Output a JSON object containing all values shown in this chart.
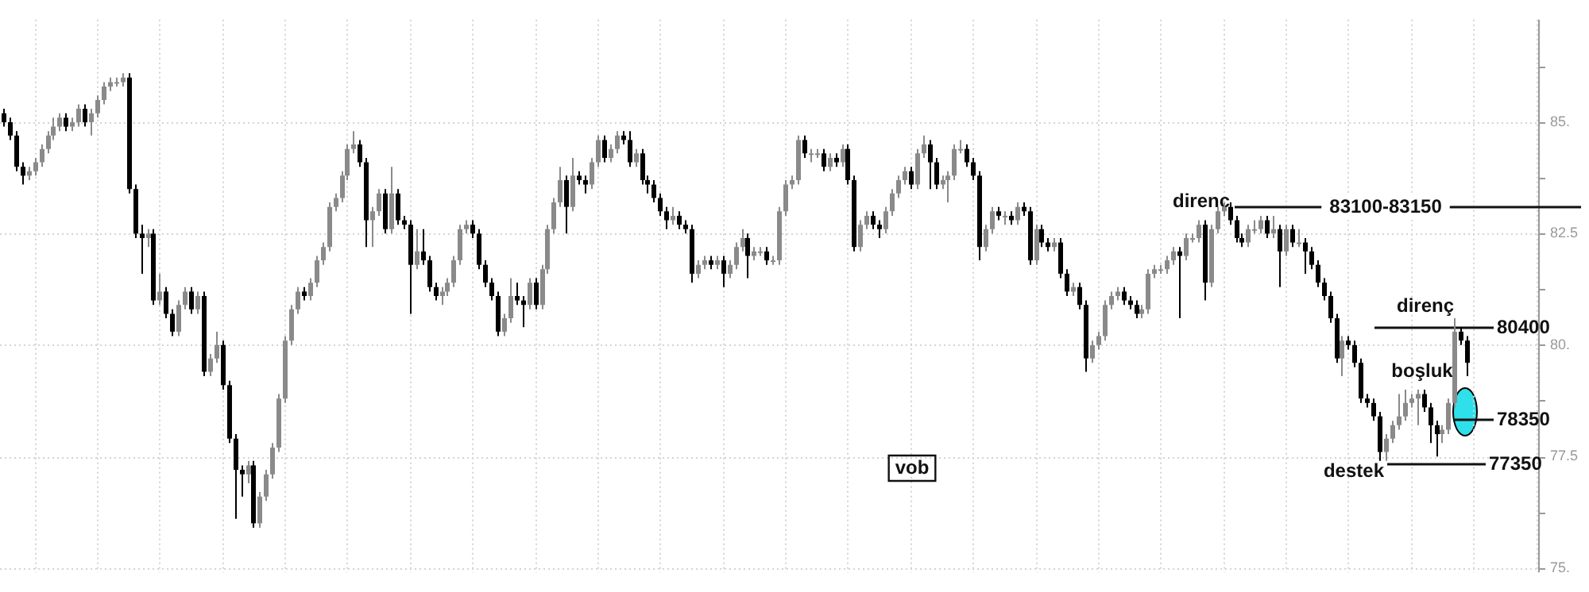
{
  "chart_data": {
    "type": "candlestick",
    "ylim": [
      74.9,
      87.3
    ],
    "yticks": [
      {
        "value": 75,
        "label": "75."
      },
      {
        "value": 76.25,
        "label": null
      },
      {
        "value": 77.5,
        "label": "77.5"
      },
      {
        "value": 78.75,
        "label": null
      },
      {
        "value": 80,
        "label": "80."
      },
      {
        "value": 81.25,
        "label": null
      },
      {
        "value": 82.5,
        "label": "82.5"
      },
      {
        "value": 83.75,
        "label": null
      },
      {
        "value": 85,
        "label": "85."
      },
      {
        "value": 86.25,
        "label": null
      }
    ],
    "grid": true,
    "tick_labels": "y",
    "ref_lines": [
      {
        "axis": "y",
        "value": 83.1,
        "label": "83100-83150"
      },
      {
        "axis": "y",
        "value": 80.4,
        "label": "80400"
      },
      {
        "axis": "y",
        "value": 78.35,
        "label": "78350"
      },
      {
        "axis": "y",
        "value": 77.35,
        "label": "77350"
      }
    ],
    "annotations": [
      "direnç",
      "direnç",
      "boşluk",
      "destek",
      "vob"
    ],
    "categories": [
      null,
      null,
      null,
      null,
      null,
      null,
      null,
      null,
      null,
      null,
      null,
      null,
      null,
      null,
      null,
      null,
      null,
      null,
      null,
      null,
      null,
      null,
      null,
      null,
      null,
      null,
      null,
      null,
      null,
      null,
      null,
      null,
      null,
      null,
      null,
      null,
      null,
      null,
      null,
      null,
      null,
      null,
      null,
      null,
      null,
      null,
      null,
      null,
      null,
      null,
      null,
      null,
      null,
      null,
      null,
      null,
      null,
      null,
      null,
      null,
      null,
      null,
      null,
      null,
      null,
      null,
      null,
      null,
      null,
      null,
      null,
      null,
      null,
      null,
      null,
      null,
      null,
      null,
      null,
      null,
      null,
      null,
      null,
      null,
      null,
      null,
      null,
      null,
      null,
      null,
      null,
      null,
      null,
      null,
      null,
      null,
      null,
      null,
      null,
      null,
      null,
      null,
      null,
      null,
      null,
      null,
      null,
      null,
      null,
      null,
      null,
      null,
      null,
      null,
      null,
      null,
      null,
      null,
      null,
      null,
      null,
      null,
      null,
      null,
      null,
      null,
      null,
      null,
      null,
      null,
      null,
      null,
      null,
      null,
      null,
      null,
      null,
      null,
      null,
      null,
      null,
      null,
      null,
      null,
      null,
      null,
      null,
      null,
      null,
      null,
      null,
      null,
      null,
      null,
      null,
      null,
      null,
      null,
      null,
      null,
      null,
      null,
      null,
      null,
      null,
      null,
      null,
      null,
      null,
      null,
      null,
      null,
      null,
      null,
      null,
      null,
      null,
      null,
      null,
      null,
      null,
      null,
      null,
      null,
      null,
      null,
      null,
      null,
      null,
      null,
      null,
      null,
      null,
      null,
      null,
      null,
      null,
      null,
      null,
      null,
      null,
      null,
      null,
      null,
      null,
      null,
      null,
      null,
      null,
      null,
      null,
      null,
      null,
      null,
      null,
      null,
      null,
      null,
      null,
      null,
      null,
      null,
      null,
      null,
      null,
      null,
      null,
      null,
      null,
      null,
      null,
      null,
      null,
      null,
      null,
      null,
      null,
      null,
      null,
      null,
      null,
      null,
      null,
      null,
      null,
      null
    ],
    "ohlc": [
      [
        85.2,
        85.3,
        84.9,
        85.0
      ],
      [
        85.0,
        85.1,
        84.6,
        84.7
      ],
      [
        84.7,
        84.8,
        83.9,
        84.0
      ],
      [
        84.0,
        84.1,
        83.6,
        83.8
      ],
      [
        83.8,
        84.0,
        83.7,
        83.9
      ],
      [
        83.9,
        84.2,
        83.8,
        84.1
      ],
      [
        84.1,
        84.5,
        84.0,
        84.4
      ],
      [
        84.4,
        84.8,
        84.3,
        84.7
      ],
      [
        84.7,
        85.1,
        84.6,
        84.9
      ],
      [
        84.9,
        85.2,
        84.8,
        85.1
      ],
      [
        85.1,
        85.2,
        84.8,
        84.9
      ],
      [
        84.9,
        85.1,
        84.8,
        85.0
      ],
      [
        85.0,
        85.4,
        84.9,
        85.3
      ],
      [
        85.3,
        85.4,
        84.9,
        85.0
      ],
      [
        85.0,
        85.3,
        84.7,
        85.2
      ],
      [
        85.2,
        85.6,
        85.1,
        85.5
      ],
      [
        85.5,
        85.9,
        85.4,
        85.8
      ],
      [
        85.8,
        86.0,
        85.7,
        85.9
      ],
      [
        85.9,
        86.0,
        85.8,
        85.9
      ],
      [
        85.9,
        86.1,
        85.8,
        86.0
      ],
      [
        86.0,
        86.1,
        83.4,
        83.5
      ],
      [
        83.5,
        83.6,
        82.4,
        82.5
      ],
      [
        82.5,
        82.7,
        81.6,
        82.4
      ],
      [
        82.4,
        82.6,
        82.2,
        82.5
      ],
      [
        82.5,
        82.6,
        80.9,
        81.0
      ],
      [
        81.0,
        81.6,
        80.9,
        81.2
      ],
      [
        81.2,
        81.3,
        80.6,
        80.7
      ],
      [
        80.7,
        80.8,
        80.2,
        80.3
      ],
      [
        80.3,
        81.0,
        80.2,
        80.9
      ],
      [
        80.9,
        81.3,
        80.8,
        81.2
      ],
      [
        81.2,
        81.3,
        80.7,
        80.8
      ],
      [
        80.8,
        81.2,
        80.7,
        81.1
      ],
      [
        81.1,
        81.2,
        79.3,
        79.4
      ],
      [
        79.4,
        79.8,
        79.3,
        79.7
      ],
      [
        79.7,
        80.3,
        79.6,
        80.0
      ],
      [
        80.0,
        80.1,
        79.0,
        79.1
      ],
      [
        79.1,
        79.2,
        77.8,
        77.9
      ],
      [
        77.9,
        78.0,
        76.1,
        77.2
      ],
      [
        77.2,
        77.3,
        76.6,
        77.1
      ],
      [
        77.1,
        77.4,
        76.9,
        77.3
      ],
      [
        77.3,
        77.4,
        75.9,
        76.0
      ],
      [
        76.0,
        76.7,
        75.9,
        76.6
      ],
      [
        76.6,
        77.2,
        76.5,
        77.1
      ],
      [
        77.1,
        77.8,
        77.0,
        77.7
      ],
      [
        77.7,
        78.9,
        77.6,
        78.8
      ],
      [
        78.8,
        80.2,
        78.7,
        80.1
      ],
      [
        80.1,
        80.9,
        80.0,
        80.8
      ],
      [
        80.8,
        81.3,
        80.7,
        81.2
      ],
      [
        81.2,
        81.3,
        81.0,
        81.1
      ],
      [
        81.1,
        81.5,
        81.0,
        81.4
      ],
      [
        81.4,
        82.0,
        81.3,
        81.9
      ],
      [
        81.9,
        82.3,
        81.8,
        82.2
      ],
      [
        82.2,
        83.2,
        82.1,
        83.1
      ],
      [
        83.1,
        83.4,
        83.0,
        83.3
      ],
      [
        83.3,
        83.9,
        83.2,
        83.8
      ],
      [
        83.8,
        84.5,
        83.7,
        84.4
      ],
      [
        84.4,
        84.8,
        84.3,
        84.5
      ],
      [
        84.5,
        84.6,
        84.0,
        84.1
      ],
      [
        84.1,
        84.2,
        82.2,
        82.8
      ],
      [
        82.8,
        83.1,
        82.2,
        83.0
      ],
      [
        83.0,
        83.5,
        82.9,
        83.4
      ],
      [
        83.4,
        83.5,
        82.5,
        82.6
      ],
      [
        82.6,
        84.0,
        82.5,
        83.4
      ],
      [
        83.4,
        83.5,
        82.7,
        82.8
      ],
      [
        82.8,
        82.9,
        82.6,
        82.7
      ],
      [
        82.7,
        82.8,
        80.7,
        81.8
      ],
      [
        81.8,
        82.6,
        81.7,
        82.1
      ],
      [
        82.1,
        82.6,
        81.8,
        81.9
      ],
      [
        81.9,
        82.0,
        81.2,
        81.3
      ],
      [
        81.3,
        81.4,
        81.0,
        81.1
      ],
      [
        81.1,
        81.3,
        80.9,
        81.2
      ],
      [
        81.2,
        81.5,
        81.1,
        81.4
      ],
      [
        81.4,
        82.0,
        81.3,
        81.9
      ],
      [
        81.9,
        82.7,
        81.8,
        82.6
      ],
      [
        82.6,
        82.8,
        82.5,
        82.7
      ],
      [
        82.7,
        82.8,
        82.4,
        82.5
      ],
      [
        82.5,
        82.6,
        81.7,
        81.8
      ],
      [
        81.8,
        81.9,
        81.3,
        81.4
      ],
      [
        81.4,
        81.5,
        81.0,
        81.1
      ],
      [
        81.1,
        81.2,
        80.2,
        80.3
      ],
      [
        80.3,
        80.7,
        80.2,
        80.6
      ],
      [
        80.6,
        81.5,
        80.5,
        81.1
      ],
      [
        81.1,
        81.4,
        80.9,
        81.0
      ],
      [
        81.0,
        81.1,
        80.4,
        80.9
      ],
      [
        80.9,
        81.5,
        80.8,
        81.4
      ],
      [
        81.4,
        81.5,
        80.8,
        80.9
      ],
      [
        80.9,
        81.8,
        80.8,
        81.7
      ],
      [
        81.7,
        82.7,
        81.6,
        82.6
      ],
      [
        82.6,
        83.3,
        82.5,
        83.2
      ],
      [
        83.2,
        84.0,
        83.1,
        83.7
      ],
      [
        83.7,
        83.8,
        82.5,
        83.1
      ],
      [
        83.1,
        84.2,
        83.0,
        83.8
      ],
      [
        83.8,
        83.9,
        83.6,
        83.7
      ],
      [
        83.7,
        83.8,
        83.4,
        83.6
      ],
      [
        83.6,
        84.2,
        83.5,
        84.1
      ],
      [
        84.1,
        84.7,
        84.0,
        84.6
      ],
      [
        84.6,
        84.7,
        84.1,
        84.2
      ],
      [
        84.2,
        84.5,
        84.1,
        84.4
      ],
      [
        84.4,
        84.8,
        84.3,
        84.7
      ],
      [
        84.7,
        84.8,
        84.5,
        84.6
      ],
      [
        84.6,
        84.8,
        84.0,
        84.1
      ],
      [
        84.1,
        84.4,
        84.0,
        84.3
      ],
      [
        84.3,
        84.4,
        83.6,
        83.7
      ],
      [
        83.7,
        83.8,
        83.4,
        83.6
      ],
      [
        83.6,
        83.7,
        83.2,
        83.3
      ],
      [
        83.3,
        83.4,
        82.9,
        83.0
      ],
      [
        83.0,
        83.1,
        82.6,
        82.8
      ],
      [
        82.8,
        83.1,
        82.7,
        82.9
      ],
      [
        82.9,
        83.0,
        82.6,
        82.7
      ],
      [
        82.7,
        82.8,
        82.5,
        82.6
      ],
      [
        82.6,
        82.7,
        81.4,
        81.6
      ],
      [
        81.6,
        81.9,
        81.5,
        81.8
      ],
      [
        81.8,
        82.0,
        81.7,
        81.9
      ],
      [
        81.9,
        82.0,
        81.7,
        81.8
      ],
      [
        81.8,
        82.0,
        81.7,
        81.9
      ],
      [
        81.9,
        82.0,
        81.3,
        81.6
      ],
      [
        81.6,
        81.9,
        81.5,
        81.8
      ],
      [
        81.8,
        82.3,
        81.7,
        82.2
      ],
      [
        82.2,
        82.6,
        82.1,
        82.4
      ],
      [
        82.4,
        82.5,
        81.5,
        82.0
      ],
      [
        82.0,
        82.2,
        81.9,
        82.1
      ],
      [
        82.1,
        82.2,
        82.0,
        82.1
      ],
      [
        82.1,
        82.2,
        81.8,
        81.9
      ],
      [
        81.9,
        82.0,
        81.8,
        81.9
      ],
      [
        81.9,
        83.1,
        81.8,
        83.0
      ],
      [
        83.0,
        83.7,
        82.9,
        83.6
      ],
      [
        83.6,
        83.8,
        83.5,
        83.7
      ],
      [
        83.7,
        84.7,
        83.6,
        84.6
      ],
      [
        84.6,
        84.7,
        84.2,
        84.3
      ],
      [
        84.3,
        84.4,
        84.1,
        84.3
      ],
      [
        84.3,
        84.4,
        84.2,
        84.3
      ],
      [
        84.3,
        84.4,
        83.9,
        84.0
      ],
      [
        84.0,
        84.3,
        83.9,
        84.2
      ],
      [
        84.2,
        84.3,
        84.0,
        84.1
      ],
      [
        84.1,
        84.5,
        84.0,
        84.4
      ],
      [
        84.4,
        84.5,
        83.6,
        83.7
      ],
      [
        83.7,
        83.8,
        82.1,
        82.2
      ],
      [
        82.2,
        82.8,
        82.1,
        82.7
      ],
      [
        82.7,
        83.0,
        82.6,
        82.9
      ],
      [
        82.9,
        83.0,
        82.6,
        82.7
      ],
      [
        82.7,
        82.8,
        82.4,
        82.6
      ],
      [
        82.6,
        83.1,
        82.5,
        83.0
      ],
      [
        83.0,
        83.5,
        82.9,
        83.4
      ],
      [
        83.4,
        83.8,
        83.3,
        83.7
      ],
      [
        83.7,
        84.0,
        83.6,
        83.9
      ],
      [
        83.9,
        84.0,
        83.5,
        83.6
      ],
      [
        83.6,
        84.4,
        83.5,
        84.3
      ],
      [
        84.3,
        84.7,
        84.2,
        84.5
      ],
      [
        84.5,
        84.6,
        83.5,
        84.1
      ],
      [
        84.1,
        84.2,
        83.5,
        83.6
      ],
      [
        83.6,
        83.8,
        83.5,
        83.7
      ],
      [
        83.7,
        83.9,
        83.2,
        83.8
      ],
      [
        83.8,
        84.5,
        83.7,
        84.4
      ],
      [
        84.4,
        84.6,
        84.3,
        84.4
      ],
      [
        84.4,
        84.5,
        84.0,
        84.1
      ],
      [
        84.1,
        84.2,
        83.7,
        83.8
      ],
      [
        83.8,
        83.9,
        81.9,
        82.2
      ],
      [
        82.2,
        82.7,
        82.1,
        82.6
      ],
      [
        82.6,
        83.1,
        82.5,
        83.0
      ],
      [
        83.0,
        83.1,
        82.8,
        82.9
      ],
      [
        82.9,
        83.0,
        82.7,
        82.9
      ],
      [
        82.9,
        83.0,
        82.7,
        82.8
      ],
      [
        82.8,
        83.2,
        82.7,
        83.1
      ],
      [
        83.1,
        83.2,
        82.9,
        83.0
      ],
      [
        83.0,
        83.1,
        81.8,
        81.9
      ],
      [
        81.9,
        82.7,
        81.8,
        82.6
      ],
      [
        82.6,
        82.7,
        82.2,
        82.3
      ],
      [
        82.3,
        82.4,
        82.1,
        82.2
      ],
      [
        82.2,
        82.4,
        82.1,
        82.3
      ],
      [
        82.3,
        82.4,
        81.5,
        81.6
      ],
      [
        81.6,
        81.7,
        81.1,
        81.2
      ],
      [
        81.2,
        81.4,
        81.1,
        81.3
      ],
      [
        81.3,
        81.4,
        80.8,
        80.9
      ],
      [
        80.9,
        81.0,
        79.4,
        79.7
      ],
      [
        79.7,
        80.1,
        79.6,
        80.0
      ],
      [
        80.0,
        80.3,
        79.9,
        80.2
      ],
      [
        80.2,
        81.0,
        80.1,
        80.9
      ],
      [
        80.9,
        81.2,
        80.8,
        81.1
      ],
      [
        81.1,
        81.3,
        81.0,
        81.2
      ],
      [
        81.2,
        81.3,
        80.9,
        81.0
      ],
      [
        81.0,
        81.1,
        80.8,
        80.9
      ],
      [
        80.9,
        81.0,
        80.6,
        80.7
      ],
      [
        80.7,
        80.9,
        80.6,
        80.8
      ],
      [
        80.8,
        81.7,
        80.7,
        81.6
      ],
      [
        81.6,
        81.8,
        81.5,
        81.7
      ],
      [
        81.7,
        81.8,
        81.6,
        81.7
      ],
      [
        81.7,
        82.0,
        81.6,
        81.9
      ],
      [
        81.9,
        82.2,
        81.8,
        82.1
      ],
      [
        82.1,
        82.2,
        80.6,
        82.0
      ],
      [
        82.0,
        82.5,
        81.9,
        82.4
      ],
      [
        82.4,
        82.5,
        82.3,
        82.4
      ],
      [
        82.4,
        82.8,
        82.3,
        82.7
      ],
      [
        82.7,
        82.8,
        81.0,
        81.4
      ],
      [
        81.4,
        82.7,
        81.3,
        82.6
      ],
      [
        82.6,
        83.1,
        82.5,
        83.0
      ],
      [
        83.0,
        83.2,
        82.9,
        83.1
      ],
      [
        83.1,
        83.2,
        82.7,
        82.8
      ],
      [
        82.8,
        82.9,
        82.3,
        82.4
      ],
      [
        82.4,
        82.5,
        82.2,
        82.3
      ],
      [
        82.3,
        82.7,
        82.2,
        82.6
      ],
      [
        82.6,
        82.8,
        82.5,
        82.6
      ],
      [
        82.6,
        82.9,
        82.5,
        82.8
      ],
      [
        82.8,
        82.9,
        82.4,
        82.5
      ],
      [
        82.5,
        82.9,
        82.4,
        82.6
      ],
      [
        82.6,
        82.7,
        81.3,
        82.1
      ],
      [
        82.1,
        82.7,
        82.0,
        82.6
      ],
      [
        82.6,
        82.7,
        82.2,
        82.3
      ],
      [
        82.3,
        82.6,
        82.2,
        82.3
      ],
      [
        82.3,
        82.4,
        81.6,
        82.1
      ],
      [
        82.1,
        82.2,
        81.7,
        81.8
      ],
      [
        81.8,
        81.9,
        81.3,
        81.4
      ],
      [
        81.4,
        81.5,
        81.0,
        81.1
      ],
      [
        81.1,
        81.2,
        80.5,
        80.6
      ],
      [
        80.6,
        80.7,
        79.6,
        79.7
      ],
      [
        79.7,
        80.2,
        79.3,
        80.1
      ],
      [
        80.1,
        80.2,
        79.9,
        80.0
      ],
      [
        80.0,
        80.1,
        79.5,
        79.6
      ],
      [
        79.6,
        79.7,
        78.7,
        78.8
      ],
      [
        78.8,
        78.9,
        78.6,
        78.7
      ],
      [
        78.7,
        78.8,
        78.3,
        78.4
      ],
      [
        78.4,
        78.5,
        77.4,
        77.6
      ],
      [
        77.6,
        78.0,
        77.4,
        77.9
      ],
      [
        77.9,
        78.3,
        77.8,
        78.2
      ],
      [
        78.2,
        78.9,
        78.1,
        78.4
      ],
      [
        78.4,
        79.0,
        78.3,
        78.7
      ],
      [
        78.7,
        78.9,
        78.6,
        78.8
      ],
      [
        78.8,
        79.0,
        78.2,
        78.9
      ],
      [
        78.9,
        79.0,
        78.5,
        78.6
      ],
      [
        78.6,
        78.7,
        77.8,
        78.2
      ],
      [
        78.2,
        78.3,
        77.5,
        78.0
      ],
      [
        78.0,
        78.2,
        77.8,
        78.1
      ],
      [
        78.1,
        78.8,
        78.0,
        78.7
      ],
      [
        78.7,
        80.6,
        78.6,
        80.3
      ],
      [
        80.3,
        80.4,
        80.0,
        80.1
      ],
      [
        80.1,
        80.2,
        79.3,
        79.6
      ],
      null,
      null,
      null,
      null,
      null,
      null,
      null,
      null,
      null,
      null,
      null
    ]
  }
}
